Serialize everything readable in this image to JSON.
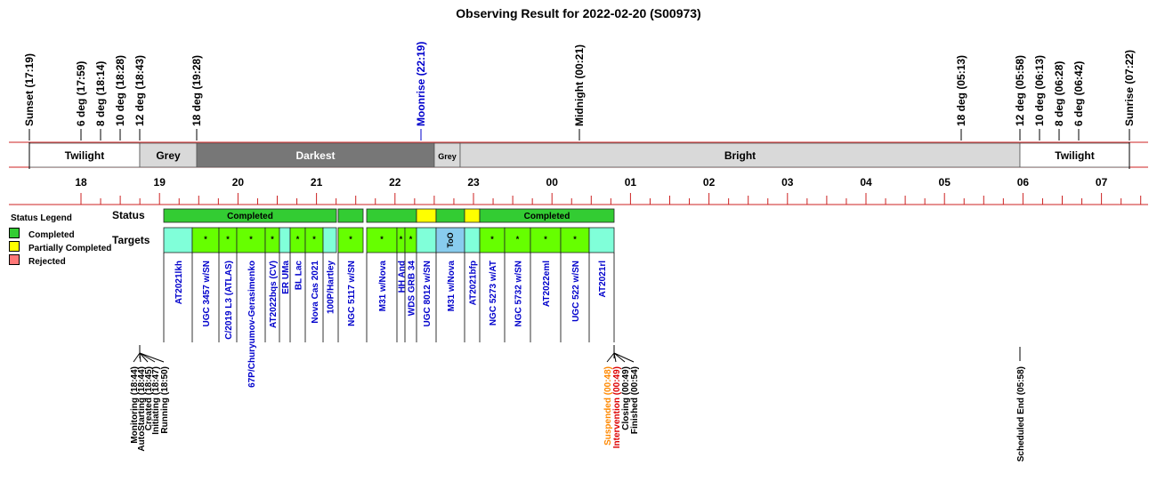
{
  "title": "Observing Result for 2022-02-20 (S00973)",
  "colors": {
    "red_line": "#cc2222",
    "twilight": "#ffffff",
    "grey": "#d9d9d9",
    "darkest": "#777777",
    "bright": "#d9d9d9",
    "completed": "#33cc33",
    "partial": "#ffff00",
    "rejected": "#ff7777",
    "target_cyan": "#80ffd9",
    "target_green": "#66ff00",
    "target_blue": "#88ccee",
    "target_text": "#0000cc",
    "orange": "#ff8800",
    "red": "#dd0000"
  },
  "top_events": [
    {
      "label": "Sunset (17:19)",
      "color": "#000000"
    },
    {
      "label": "6 deg (17:59)",
      "color": "#000000"
    },
    {
      "label": "8 deg (18:14)",
      "color": "#000000"
    },
    {
      "label": "10 deg (18:28)",
      "color": "#000000"
    },
    {
      "label": "12 deg (18:43)",
      "color": "#000000"
    },
    {
      "label": "18 deg (19:28)",
      "color": "#000000"
    },
    {
      "label": "Moonrise (22:19)",
      "color": "#0000cc"
    },
    {
      "label": "Midnight (00:21)",
      "color": "#000000"
    },
    {
      "label": "18 deg (05:13)",
      "color": "#000000"
    },
    {
      "label": "12 deg (05:58)",
      "color": "#000000"
    },
    {
      "label": "10 deg (06:13)",
      "color": "#000000"
    },
    {
      "label": "8 deg (06:28)",
      "color": "#000000"
    },
    {
      "label": "6 deg (06:42)",
      "color": "#000000"
    },
    {
      "label": "Sunrise (07:22)",
      "color": "#000000"
    }
  ],
  "sky_segments": [
    {
      "label": "Twilight",
      "type": "twilight"
    },
    {
      "label": "Grey",
      "type": "grey"
    },
    {
      "label": "Darkest",
      "type": "darkest"
    },
    {
      "label": "Grey",
      "type": "grey"
    },
    {
      "label": "Bright",
      "type": "bright"
    },
    {
      "label": "Twilight",
      "type": "twilight"
    }
  ],
  "hour_labels": [
    "18",
    "19",
    "20",
    "21",
    "22",
    "23",
    "00",
    "01",
    "02",
    "03",
    "04",
    "05",
    "06",
    "07"
  ],
  "legend": {
    "title": "Status Legend",
    "items": [
      {
        "label": "Completed",
        "color": "#33cc33"
      },
      {
        "label": "Partially Completed",
        "color": "#ffff00"
      },
      {
        "label": "Rejected",
        "color": "#ff7777"
      }
    ]
  },
  "row_labels": {
    "status": "Status",
    "targets": "Targets"
  },
  "status_segments": [
    {
      "label": "Completed",
      "status": "completed"
    },
    {
      "label": "",
      "status": "completed"
    },
    {
      "label": "",
      "status": "completed"
    },
    {
      "label": "",
      "status": "partial"
    },
    {
      "label": "",
      "status": "completed"
    },
    {
      "label": "",
      "status": "partial"
    },
    {
      "label": "Completed",
      "status": "completed"
    }
  ],
  "targets": [
    {
      "name": "AT2021lkh",
      "kind": "cyan",
      "mark": ""
    },
    {
      "name": "UGC 3457 w/SN",
      "kind": "green",
      "mark": "*"
    },
    {
      "name": "C/2019 L3 (ATLAS)",
      "kind": "green",
      "mark": "*"
    },
    {
      "name": "67P/Churyumov-Gerasimenko",
      "kind": "green",
      "mark": "*"
    },
    {
      "name": "AT2022bqs (CV)",
      "kind": "green",
      "mark": "*"
    },
    {
      "name": "ER UMa",
      "kind": "cyan",
      "mark": ""
    },
    {
      "name": "BL Lac",
      "kind": "green",
      "mark": "*"
    },
    {
      "name": "Nova Cas 2021",
      "kind": "green",
      "mark": "*"
    },
    {
      "name": "100P/Hartley",
      "kind": "cyan",
      "mark": ""
    },
    {
      "name": "NGC 5117 w/SN",
      "kind": "green",
      "mark": "*"
    },
    {
      "name": "M31 w/Nova",
      "kind": "green",
      "mark": "*"
    },
    {
      "name": "HH And",
      "kind": "green",
      "mark": "*"
    },
    {
      "name": "WDS GRB 34",
      "kind": "green",
      "mark": "*"
    },
    {
      "name": "UGC 8012 w/SN",
      "kind": "cyan",
      "mark": ""
    },
    {
      "name": "M31 w/Nova",
      "kind": "blue",
      "mark": "ToO"
    },
    {
      "name": "AT2021bfp",
      "kind": "cyan",
      "mark": ""
    },
    {
      "name": "NGC 5273 w/AT",
      "kind": "green",
      "mark": "*"
    },
    {
      "name": "NGC 5732 w/SN",
      "kind": "green",
      "mark": "*"
    },
    {
      "name": "AT2022eml",
      "kind": "green",
      "mark": "*"
    },
    {
      "name": "UGC 522 w/SN",
      "kind": "green",
      "mark": "*"
    },
    {
      "name": "AT2021rl",
      "kind": "cyan",
      "mark": ""
    }
  ],
  "start_events": [
    "Monitoring (18:44)",
    "AutoStarting (18:44)",
    "Created (18:45)",
    "Initiating (18:47)",
    "Running (18:50)"
  ],
  "end_events": [
    {
      "label": "Suspended (00:48)",
      "color": "#ff8800"
    },
    {
      "label": "Intervention (00:49)",
      "color": "#dd0000"
    },
    {
      "label": "Closing (00:49)",
      "color": "#000000"
    },
    {
      "label": "Finished (00:54)",
      "color": "#000000"
    }
  ],
  "scheduled_end": "Scheduled End (05:58)"
}
